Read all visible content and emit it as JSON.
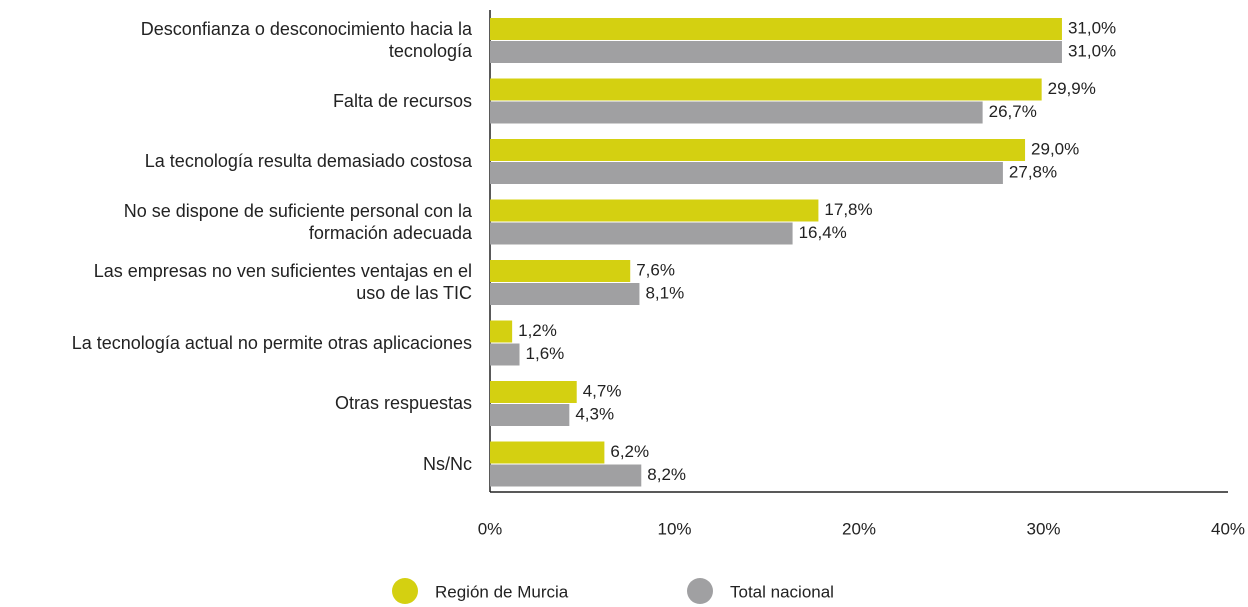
{
  "chart_data": {
    "type": "barh",
    "categories": [
      "Desconfianza o desconocimiento hacia la\ntecnología",
      "Falta de recursos",
      "La tecnología resulta demasiado costosa",
      "No se dispone de suficiente personal con la\nformación adecuada",
      "Las empresas no ven suficientes ventajas en el\nuso de las TIC",
      "La tecnología actual no permite otras aplicaciones",
      "Otras respuestas",
      "Ns/Nc"
    ],
    "series": [
      {
        "name": "Región de Murcia",
        "color": "#d4d011",
        "values": [
          31.0,
          29.9,
          29.0,
          17.8,
          7.6,
          1.2,
          4.7,
          6.2
        ],
        "value_labels": [
          "31,0%",
          "29,9%",
          "29,0%",
          "17,8%",
          "7,6%",
          "1,2%",
          "4,7%",
          "6,2%"
        ]
      },
      {
        "name": "Total nacional",
        "color": "#a0a0a2",
        "values": [
          31.0,
          26.7,
          27.8,
          16.4,
          8.1,
          1.6,
          4.3,
          8.2
        ],
        "value_labels": [
          "31,0%",
          "26,7%",
          "27,8%",
          "16,4%",
          "8,1%",
          "1,6%",
          "4,3%",
          "8,2%"
        ]
      }
    ],
    "xlim": [
      0,
      40
    ],
    "xticks": [
      {
        "value": 0,
        "label": "0%"
      },
      {
        "value": 10,
        "label": "10%"
      },
      {
        "value": 20,
        "label": "20%"
      },
      {
        "value": 30,
        "label": "30%"
      },
      {
        "value": 40,
        "label": "40%"
      }
    ],
    "legend": "bottom"
  }
}
